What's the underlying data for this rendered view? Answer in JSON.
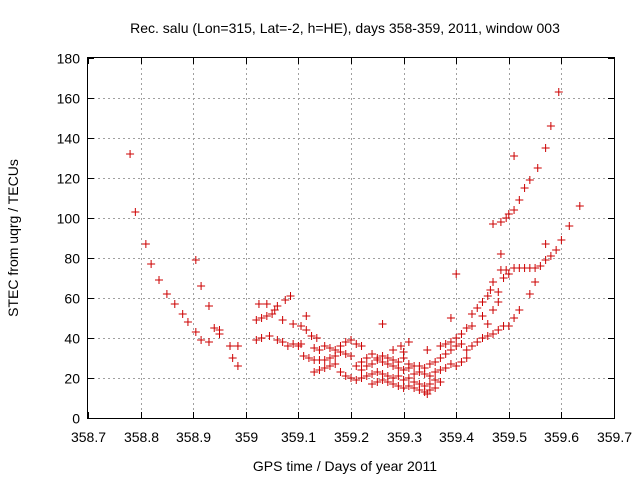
{
  "chart_data": {
    "type": "scatter",
    "title": "Rec. salu (Lon=315, Lat=-2, h=HE), days 358-359, 2011, window 003",
    "xlabel": "GPS time / Days of year 2011",
    "ylabel": "STEC from uqrg / TECUs",
    "xlim": [
      358.7,
      359.7
    ],
    "ylim": [
      0,
      180
    ],
    "xticks": [
      358.7,
      358.8,
      358.9,
      359,
      359.1,
      359.2,
      359.3,
      359.4,
      359.5,
      359.6,
      359.7
    ],
    "xtick_labels": [
      "358.7",
      "358.8",
      "358.9",
      "359",
      "359.1",
      "359.2",
      "359.3",
      "359.4",
      "359.5",
      "359.6",
      "359.7"
    ],
    "yticks": [
      0,
      20,
      40,
      60,
      80,
      100,
      120,
      140,
      160,
      180
    ],
    "ytick_labels": [
      "0",
      "20",
      "40",
      "60",
      "80",
      "100",
      "120",
      "140",
      "160",
      "180"
    ],
    "grid": true,
    "marker": "plus",
    "color": "#cc0000",
    "points": [
      [
        358.78,
        132
      ],
      [
        358.79,
        103
      ],
      [
        358.81,
        87
      ],
      [
        358.82,
        77
      ],
      [
        358.835,
        69
      ],
      [
        358.85,
        62
      ],
      [
        358.865,
        57
      ],
      [
        358.88,
        52
      ],
      [
        358.89,
        48
      ],
      [
        358.905,
        43
      ],
      [
        358.915,
        39
      ],
      [
        358.93,
        38
      ],
      [
        358.94,
        45
      ],
      [
        358.95,
        42
      ],
      [
        358.95,
        44
      ],
      [
        358.97,
        36
      ],
      [
        358.975,
        30
      ],
      [
        358.985,
        26
      ],
      [
        358.985,
        36
      ],
      [
        358.905,
        79
      ],
      [
        358.915,
        66
      ],
      [
        358.93,
        56
      ],
      [
        359.02,
        49
      ],
      [
        359.03,
        50
      ],
      [
        359.04,
        51
      ],
      [
        359.05,
        52
      ],
      [
        359.06,
        56
      ],
      [
        359.075,
        59
      ],
      [
        359.085,
        61
      ],
      [
        359.02,
        39
      ],
      [
        359.03,
        40
      ],
      [
        359.045,
        41
      ],
      [
        359.06,
        39
      ],
      [
        359.07,
        38
      ],
      [
        359.08,
        36
      ],
      [
        359.09,
        37
      ],
      [
        359.1,
        36
      ],
      [
        359.105,
        37
      ],
      [
        359.025,
        57
      ],
      [
        359.04,
        57
      ],
      [
        359.055,
        54
      ],
      [
        359.07,
        49
      ],
      [
        359.09,
        47
      ],
      [
        359.105,
        46
      ],
      [
        359.115,
        44
      ],
      [
        359.115,
        51
      ],
      [
        359.125,
        41
      ],
      [
        359.135,
        40
      ],
      [
        359.11,
        31
      ],
      [
        359.12,
        30
      ],
      [
        359.13,
        29
      ],
      [
        359.14,
        29
      ],
      [
        359.15,
        29
      ],
      [
        359.16,
        30
      ],
      [
        359.17,
        31
      ],
      [
        359.18,
        33
      ],
      [
        359.19,
        32
      ],
      [
        359.2,
        31
      ],
      [
        359.13,
        35
      ],
      [
        359.14,
        34
      ],
      [
        359.15,
        36
      ],
      [
        359.16,
        35
      ],
      [
        359.17,
        34
      ],
      [
        359.18,
        36
      ],
      [
        359.19,
        38
      ],
      [
        359.2,
        39
      ],
      [
        359.21,
        37
      ],
      [
        359.22,
        36
      ],
      [
        359.13,
        23
      ],
      [
        359.14,
        24
      ],
      [
        359.15,
        25
      ],
      [
        359.16,
        26
      ],
      [
        359.17,
        27
      ],
      [
        359.18,
        23
      ],
      [
        359.19,
        21
      ],
      [
        359.2,
        20
      ],
      [
        359.21,
        19
      ],
      [
        359.22,
        20
      ],
      [
        359.23,
        21
      ],
      [
        359.24,
        22
      ],
      [
        359.25,
        23
      ],
      [
        359.26,
        22
      ],
      [
        359.27,
        21
      ],
      [
        359.21,
        26
      ],
      [
        359.22,
        28
      ],
      [
        359.23,
        30
      ],
      [
        359.24,
        32
      ],
      [
        359.25,
        30
      ],
      [
        359.26,
        28
      ],
      [
        359.27,
        27
      ],
      [
        359.28,
        26
      ],
      [
        359.29,
        25
      ],
      [
        359.3,
        24
      ],
      [
        359.22,
        24
      ],
      [
        359.23,
        26
      ],
      [
        359.24,
        27
      ],
      [
        359.25,
        29
      ],
      [
        359.26,
        31
      ],
      [
        359.27,
        30
      ],
      [
        359.28,
        29
      ],
      [
        359.29,
        28
      ],
      [
        359.3,
        30
      ],
      [
        359.31,
        27
      ],
      [
        359.26,
        47
      ],
      [
        359.28,
        34
      ],
      [
        359.3,
        33
      ],
      [
        359.31,
        38
      ],
      [
        359.295,
        36
      ],
      [
        359.24,
        17
      ],
      [
        359.25,
        18
      ],
      [
        359.26,
        19
      ],
      [
        359.27,
        18
      ],
      [
        359.28,
        17
      ],
      [
        359.29,
        16
      ],
      [
        359.3,
        15
      ],
      [
        359.31,
        16
      ],
      [
        359.32,
        15
      ],
      [
        359.33,
        14
      ],
      [
        359.28,
        20
      ],
      [
        359.29,
        21
      ],
      [
        359.3,
        19
      ],
      [
        359.31,
        20
      ],
      [
        359.32,
        22
      ],
      [
        359.33,
        23
      ],
      [
        359.34,
        22
      ],
      [
        359.35,
        21
      ],
      [
        359.36,
        23
      ],
      [
        359.37,
        24
      ],
      [
        359.34,
        13
      ],
      [
        359.345,
        12
      ],
      [
        359.35,
        14
      ],
      [
        359.36,
        15
      ],
      [
        359.37,
        18
      ],
      [
        359.32,
        18
      ],
      [
        359.33,
        17
      ],
      [
        359.34,
        16
      ],
      [
        359.35,
        17
      ],
      [
        359.36,
        19
      ],
      [
        359.31,
        25
      ],
      [
        359.32,
        26
      ],
      [
        359.33,
        26
      ],
      [
        359.34,
        25
      ],
      [
        359.35,
        27
      ],
      [
        359.36,
        28
      ],
      [
        359.37,
        30
      ],
      [
        359.38,
        32
      ],
      [
        359.39,
        34
      ],
      [
        359.4,
        36
      ],
      [
        359.345,
        34
      ],
      [
        359.37,
        36
      ],
      [
        359.38,
        37
      ],
      [
        359.39,
        38
      ],
      [
        359.39,
        50
      ],
      [
        359.38,
        25
      ],
      [
        359.39,
        27
      ],
      [
        359.4,
        26
      ],
      [
        359.41,
        28
      ],
      [
        359.42,
        30
      ],
      [
        359.4,
        40
      ],
      [
        359.41,
        42
      ],
      [
        359.42,
        45
      ],
      [
        359.43,
        46
      ],
      [
        359.43,
        52
      ],
      [
        359.44,
        55
      ],
      [
        359.45,
        58
      ],
      [
        359.46,
        61
      ],
      [
        359.465,
        64
      ],
      [
        359.47,
        68
      ],
      [
        359.4,
        72
      ],
      [
        359.41,
        37
      ],
      [
        359.42,
        34
      ],
      [
        359.43,
        36
      ],
      [
        359.44,
        38
      ],
      [
        359.45,
        40
      ],
      [
        359.46,
        41
      ],
      [
        359.47,
        42
      ],
      [
        359.48,
        44
      ],
      [
        359.49,
        46
      ],
      [
        359.45,
        51
      ],
      [
        359.46,
        47
      ],
      [
        359.47,
        54
      ],
      [
        359.48,
        58
      ],
      [
        359.48,
        63
      ],
      [
        359.485,
        74
      ],
      [
        359.49,
        70
      ],
      [
        359.495,
        74
      ],
      [
        359.5,
        72
      ],
      [
        359.51,
        75
      ],
      [
        359.47,
        97
      ],
      [
        359.485,
        98
      ],
      [
        359.495,
        100
      ],
      [
        359.5,
        102
      ],
      [
        359.51,
        104
      ],
      [
        359.485,
        82
      ],
      [
        359.52,
        109
      ],
      [
        359.53,
        115
      ],
      [
        359.54,
        119
      ],
      [
        359.5,
        46
      ],
      [
        359.51,
        50
      ],
      [
        359.52,
        54
      ],
      [
        359.54,
        62
      ],
      [
        359.55,
        68
      ],
      [
        359.52,
        75
      ],
      [
        359.53,
        75
      ],
      [
        359.54,
        75
      ],
      [
        359.55,
        75
      ],
      [
        359.56,
        76
      ],
      [
        359.57,
        79
      ],
      [
        359.58,
        81
      ],
      [
        359.59,
        84
      ],
      [
        359.6,
        89
      ],
      [
        359.615,
        96
      ],
      [
        359.635,
        106
      ],
      [
        359.57,
        87
      ],
      [
        359.555,
        125
      ],
      [
        359.57,
        135
      ],
      [
        359.58,
        146
      ],
      [
        359.595,
        163
      ],
      [
        359.51,
        131
      ]
    ]
  }
}
